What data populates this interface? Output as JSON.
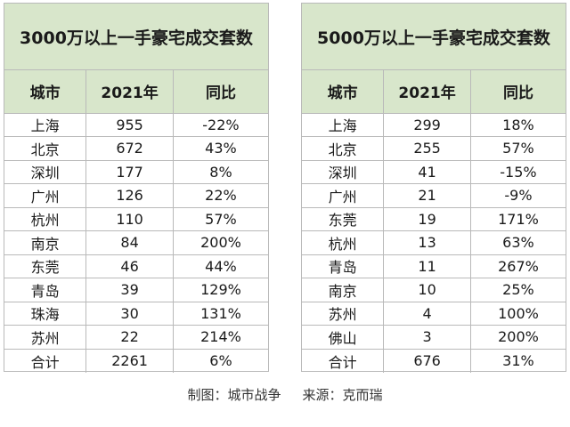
{
  "left_table": {
    "title": "3000万以上一手豪宅成交套数",
    "headers": [
      "城市",
      "2021年",
      "同比"
    ],
    "rows": [
      [
        "上海",
        "955",
        "-22%"
      ],
      [
        "北京",
        "672",
        "43%"
      ],
      [
        "深圳",
        "177",
        "8%"
      ],
      [
        "广州",
        "126",
        "22%"
      ],
      [
        "杭州",
        "110",
        "57%"
      ],
      [
        "南京",
        "84",
        "200%"
      ],
      [
        "东莞",
        "46",
        "44%"
      ],
      [
        "青岛",
        "39",
        "129%"
      ],
      [
        "珠海",
        "30",
        "131%"
      ],
      [
        "苏州",
        "22",
        "214%"
      ],
      [
        "合计",
        "2261",
        "6%"
      ]
    ]
  },
  "right_table": {
    "title": "5000万以上一手豪宅成交套数",
    "headers": [
      "城市",
      "2021年",
      "同比"
    ],
    "rows": [
      [
        "上海",
        "299",
        "18%"
      ],
      [
        "北京",
        "255",
        "57%"
      ],
      [
        "深圳",
        "41",
        "-15%"
      ],
      [
        "广州",
        "21",
        "-9%"
      ],
      [
        "东莞",
        "19",
        "171%"
      ],
      [
        "杭州",
        "13",
        "63%"
      ],
      [
        "青岛",
        "11",
        "267%"
      ],
      [
        "南京",
        "10",
        "25%"
      ],
      [
        "苏州",
        "4",
        "100%"
      ],
      [
        "佛山",
        "3",
        "200%"
      ],
      [
        "合计",
        "676",
        "31%"
      ]
    ]
  },
  "footer": {
    "chart_by": "制图：城市战争",
    "source": "来源：克而瑞"
  },
  "colors": {
    "header_bg": "#d8e6cb",
    "grid": "#b9b9b9"
  }
}
